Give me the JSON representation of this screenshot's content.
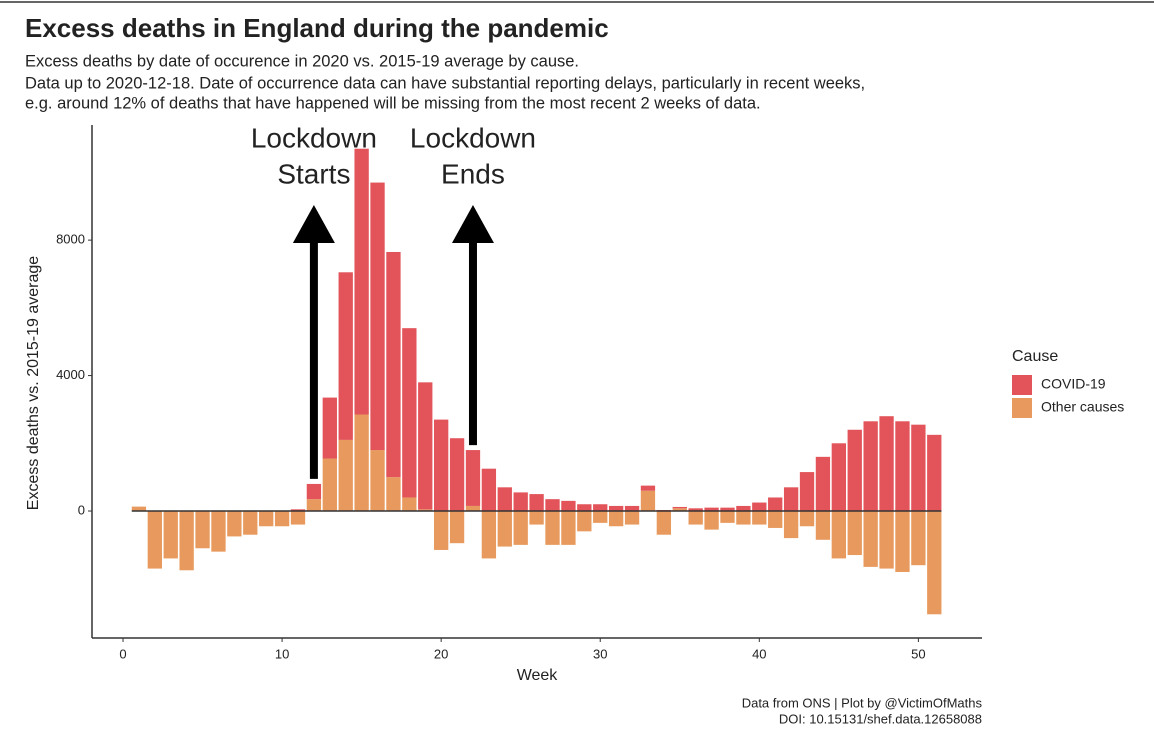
{
  "chart_data": {
    "type": "stacked_bar",
    "title": "Excess deaths in England during the pandemic",
    "subtitle": [
      "Excess deaths by date of occurence in 2020 vs. 2015-19 average by cause.",
      "Data up to 2020-12-18. Date of occurrence data can have substantial reporting delays, particularly in recent weeks,",
      "e.g. around 12% of deaths that have happened will be missing from the most recent 2 weeks of data."
    ],
    "x_label": "Week",
    "y_label": "Excess deaths vs. 2015-19 average",
    "caption": [
      "Data from ONS | Plot by @VictimOfMaths",
      "DOI: 10.15131/shef.data.12658088"
    ],
    "legend_title": "Cause",
    "x": [
      1,
      2,
      3,
      4,
      5,
      6,
      7,
      8,
      9,
      10,
      11,
      12,
      13,
      14,
      15,
      16,
      17,
      18,
      19,
      20,
      21,
      22,
      23,
      24,
      25,
      26,
      27,
      28,
      29,
      30,
      31,
      32,
      33,
      34,
      35,
      36,
      37,
      38,
      39,
      40,
      41,
      42,
      43,
      44,
      45,
      46,
      47,
      48,
      49,
      50,
      51
    ],
    "series": [
      {
        "name": "Other causes",
        "color": "#e89a5e",
        "values": [
          130,
          -1700,
          -1400,
          -1750,
          -1100,
          -1200,
          -750,
          -700,
          -450,
          -450,
          -400,
          350,
          1550,
          2100,
          2850,
          1800,
          1000,
          400,
          50,
          -1150,
          -950,
          150,
          -1400,
          -1050,
          -1000,
          -400,
          -1000,
          -1000,
          -600,
          -350,
          -450,
          -400,
          600,
          -700,
          80,
          -400,
          -550,
          -350,
          -400,
          -400,
          -500,
          -800,
          -450,
          -850,
          -1400,
          -1300,
          -1650,
          -1700,
          -1800,
          -1600,
          -3050
        ]
      },
      {
        "name": "COVID-19",
        "color": "#e2545a",
        "values": [
          0,
          0,
          0,
          0,
          0,
          0,
          0,
          0,
          0,
          0,
          50,
          450,
          1800,
          4950,
          7850,
          7900,
          6650,
          5000,
          3750,
          2700,
          2150,
          1650,
          1250,
          700,
          550,
          500,
          350,
          300,
          200,
          200,
          150,
          150,
          150,
          30,
          40,
          80,
          100,
          100,
          150,
          250,
          400,
          700,
          1150,
          1600,
          2000,
          2400,
          2650,
          2800,
          2650,
          2550,
          2250
        ]
      }
    ],
    "xlim": [
      -1.95,
      54
    ],
    "xticks": [
      0,
      10,
      20,
      30,
      40,
      50
    ],
    "ylim": [
      -3750,
      11400
    ],
    "yticks": [
      0,
      4000,
      8000
    ],
    "legend_position": "right",
    "annotations": [
      {
        "text": [
          "Lockdown",
          "Starts"
        ],
        "x": 12
      },
      {
        "text": [
          "Lockdown",
          "Ends"
        ],
        "x": 22
      }
    ]
  }
}
